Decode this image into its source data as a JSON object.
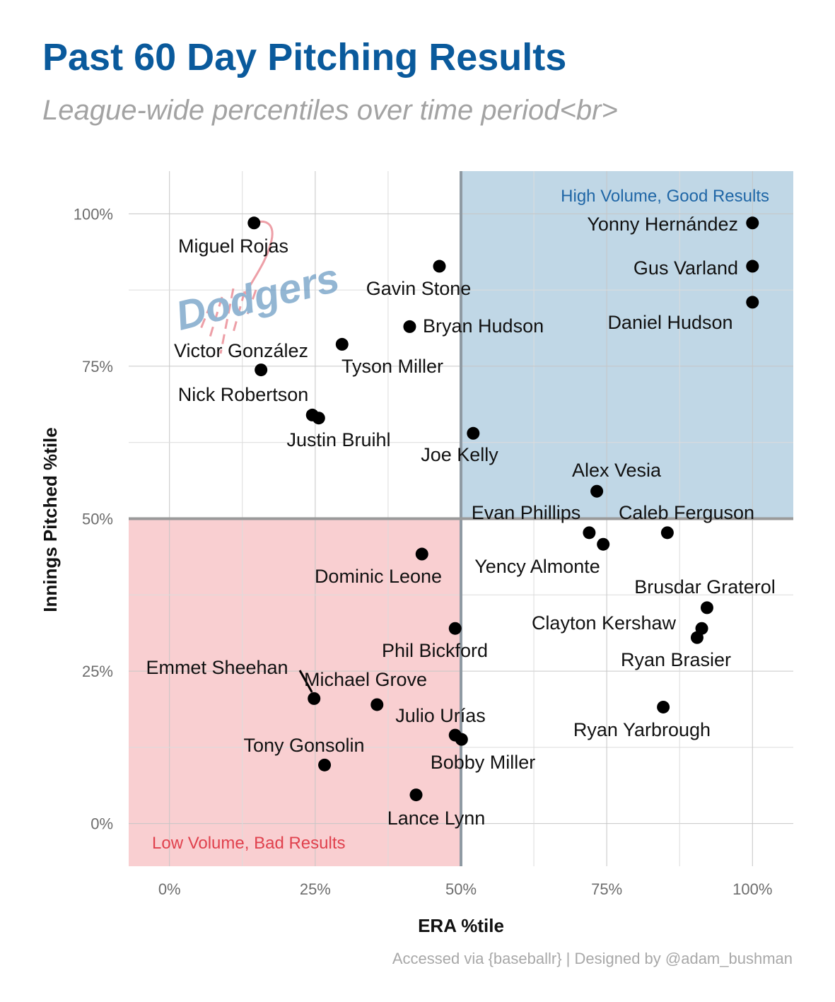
{
  "header": {
    "title": "Past 60 Day Pitching Results",
    "subtitle": "League-wide percentiles over time period<br>"
  },
  "caption": "Accessed via {baseballr} | Designed by @adam_bushman",
  "logo": {
    "text": "Dodgers",
    "icon": "dodgers-logo"
  },
  "colors": {
    "title": "#0a5a9c",
    "good_region": "#c0d7e6",
    "bad_region": "#f9cfd1",
    "good_text": "#1f66a6",
    "bad_text": "#e0414d",
    "point": "#000000"
  },
  "chart_data": {
    "type": "scatter",
    "xlabel": "ERA %tile",
    "ylabel": "Innings Pitched %tile",
    "xlim": [
      -0.07,
      1.07
    ],
    "ylim": [
      -0.07,
      1.07
    ],
    "xticks": [
      0,
      0.25,
      0.5,
      0.75,
      1
    ],
    "yticks": [
      0,
      0.25,
      0.5,
      0.75,
      1
    ],
    "xtick_labels": [
      "0%",
      "25%",
      "50%",
      "75%",
      "100%"
    ],
    "ytick_labels": [
      "0%",
      "25%",
      "50%",
      "75%",
      "100%"
    ],
    "grid": true,
    "regions": [
      {
        "label": "High Volume, Good Results",
        "x": [
          0.5,
          1.07
        ],
        "y": [
          0.5,
          1.07
        ]
      },
      {
        "label": "Low Volume, Bad Results",
        "x": [
          -0.07,
          0.5
        ],
        "y": [
          -0.07,
          0.5
        ]
      }
    ],
    "points": [
      {
        "name": "Miguel Rojas",
        "x": 0.145,
        "y": 0.985
      },
      {
        "name": "Gavin Stone",
        "x": 0.463,
        "y": 0.914
      },
      {
        "name": "Bryan Hudson",
        "x": 0.412,
        "y": 0.815
      },
      {
        "name": "Tyson Miller",
        "x": 0.296,
        "y": 0.786
      },
      {
        "name": "Victor González",
        "x": 0.157,
        "y": 0.744
      },
      {
        "name": "Nick Robertson",
        "x": 0.245,
        "y": 0.67
      },
      {
        "name": "Justin Bruihl",
        "x": 0.256,
        "y": 0.665
      },
      {
        "name": "Joe Kelly",
        "x": 0.521,
        "y": 0.64
      },
      {
        "name": "Alex Vesia",
        "x": 0.733,
        "y": 0.545
      },
      {
        "name": "Evan Phillips",
        "x": 0.72,
        "y": 0.477
      },
      {
        "name": "Yency Almonte",
        "x": 0.744,
        "y": 0.458
      },
      {
        "name": "Caleb Ferguson",
        "x": 0.854,
        "y": 0.477
      },
      {
        "name": "Yonny Hernández",
        "x": 1.0,
        "y": 0.985
      },
      {
        "name": "Gus Varland",
        "x": 1.0,
        "y": 0.914
      },
      {
        "name": "Daniel Hudson",
        "x": 1.0,
        "y": 0.855
      },
      {
        "name": "Dominic Leone",
        "x": 0.433,
        "y": 0.442
      },
      {
        "name": "Phil Bickford",
        "x": 0.49,
        "y": 0.32
      },
      {
        "name": "Brusdar Graterol",
        "x": 0.922,
        "y": 0.354
      },
      {
        "name": "Clayton Kershaw",
        "x": 0.913,
        "y": 0.32
      },
      {
        "name": "Ryan Brasier",
        "x": 0.905,
        "y": 0.305
      },
      {
        "name": "Emmet Sheehan",
        "x": 0.248,
        "y": 0.205
      },
      {
        "name": "Michael Grove",
        "x": 0.356,
        "y": 0.195
      },
      {
        "name": "Julio Urías",
        "x": 0.49,
        "y": 0.145
      },
      {
        "name": "Bobby Miller",
        "x": 0.501,
        "y": 0.138
      },
      {
        "name": "Ryan Yarbrough",
        "x": 0.847,
        "y": 0.191
      },
      {
        "name": "Tony Gonsolin",
        "x": 0.266,
        "y": 0.096
      },
      {
        "name": "Lance Lynn",
        "x": 0.423,
        "y": 0.047
      }
    ]
  }
}
